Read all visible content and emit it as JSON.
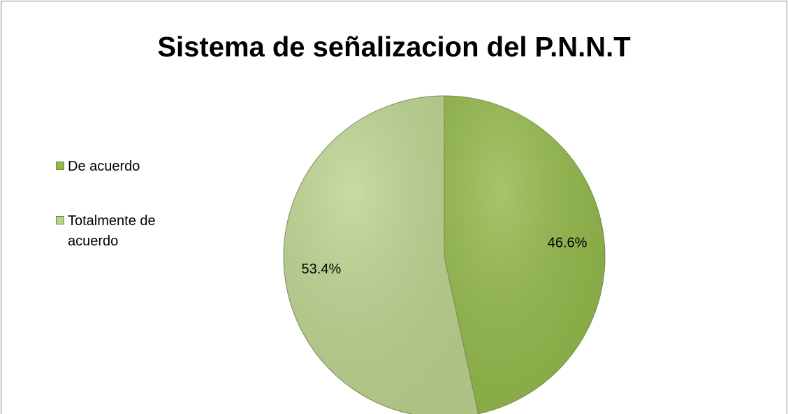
{
  "chart_data": {
    "type": "pie",
    "title": "Sistema de señalizacion del P.N.N.T",
    "categories": [
      "De acuerdo",
      "Totalmente de acuerdo"
    ],
    "values": [
      46.6,
      53.4
    ],
    "value_labels": [
      "46.6%",
      "53.4%"
    ],
    "colors": [
      "#93b94a",
      "#bcd38f"
    ],
    "legend": "left"
  }
}
